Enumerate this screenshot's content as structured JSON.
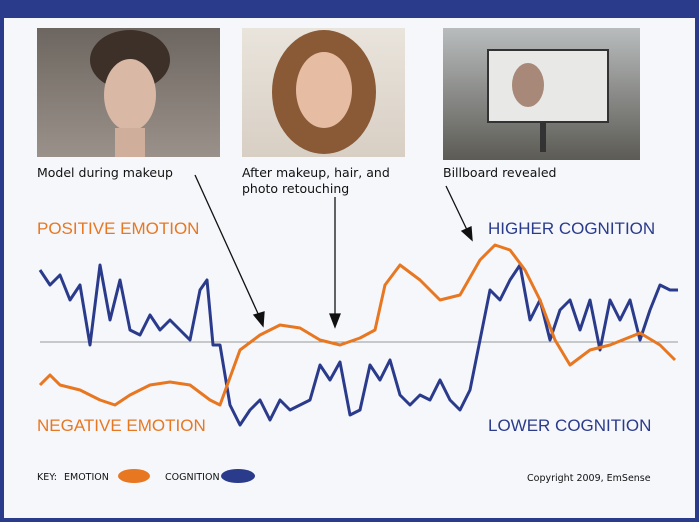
{
  "captions": {
    "photo1": "Model during makeup",
    "photo2_line1": "After makeup, hair, and",
    "photo2_line2": "photo retouching",
    "photo3": "Billboard revealed"
  },
  "labels": {
    "positive": "POSITIVE EMOTION",
    "negative": "NEGATIVE EMOTION",
    "higher": "HIGHER COGNITION",
    "lower": "LOWER COGNITION"
  },
  "key": {
    "title": "KEY:",
    "emotion": "EMOTION",
    "cognition": "COGNITION"
  },
  "copyright": "Copyright 2009, EmSense"
}
